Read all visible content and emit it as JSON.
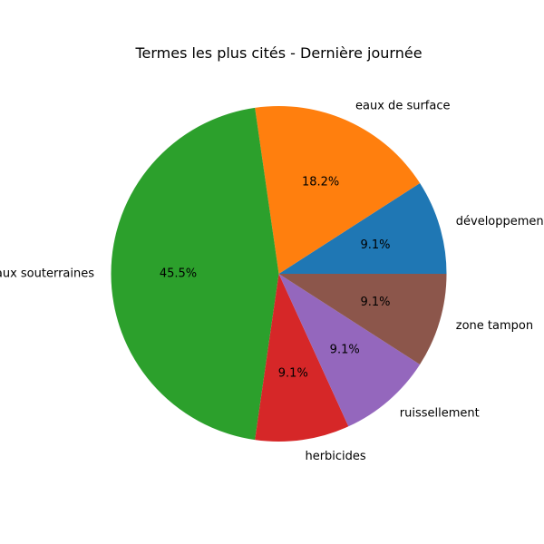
{
  "chart_data": {
    "type": "pie",
    "title": "Termes les plus cités - Dernière journée",
    "labels": [
      "développement",
      "eaux de surface",
      "eaux souterraines",
      "herbicides",
      "ruissellement",
      "zone tampon"
    ],
    "values": [
      1,
      2,
      5,
      1,
      1,
      1
    ],
    "percent_labels": [
      "9.1%",
      "18.2%",
      "45.5%",
      "9.1%",
      "9.1%",
      "9.1%"
    ],
    "colors": [
      "#1f77b4",
      "#ff7f0e",
      "#2ca02c",
      "#d62728",
      "#9467bd",
      "#8c564b"
    ],
    "start_angle_deg": 0,
    "direction": "counterclockwise"
  }
}
